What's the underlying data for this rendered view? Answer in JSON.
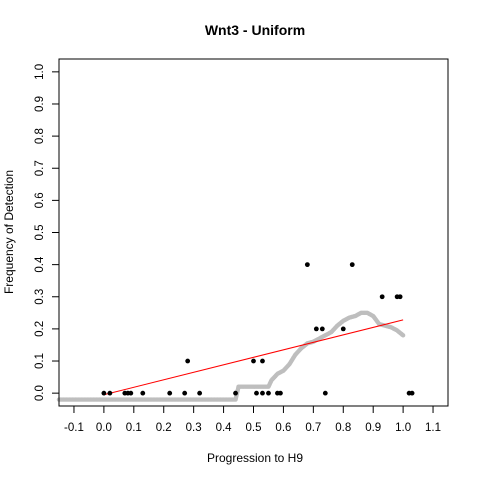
{
  "chart_data": {
    "type": "scatter",
    "title": "Wnt3 - Uniform",
    "xlabel": "Progression to H9",
    "ylabel": "Frequency of Detection",
    "xlim": [
      -0.15,
      1.15
    ],
    "ylim": [
      -0.04,
      1.04
    ],
    "xticks": [
      "-0.1",
      "0.0",
      "0.1",
      "0.2",
      "0.3",
      "0.4",
      "0.5",
      "0.6",
      "0.7",
      "0.8",
      "0.9",
      "1.0",
      "1.1"
    ],
    "yticks": [
      "0.0",
      "0.1",
      "0.2",
      "0.3",
      "0.4",
      "0.5",
      "0.6",
      "0.7",
      "0.8",
      "0.9",
      "1.0"
    ],
    "grid": false,
    "legend": "none",
    "series": [
      {
        "kind": "points",
        "color": "#000000",
        "x": [
          0.0,
          0.02,
          0.07,
          0.08,
          0.09,
          0.13,
          0.22,
          0.27,
          0.28,
          0.32,
          0.44,
          0.5,
          0.51,
          0.53,
          0.53,
          0.55,
          0.58,
          0.59,
          0.68,
          0.71,
          0.73,
          0.74,
          0.8,
          0.83,
          0.93,
          0.98,
          0.99,
          1.02,
          1.03
        ],
        "y": [
          0.0,
          0.0,
          0.0,
          0.0,
          0.0,
          0.0,
          0.0,
          0.0,
          0.1,
          0.0,
          0.0,
          0.1,
          0.0,
          0.1,
          0.0,
          0.0,
          0.0,
          0.0,
          0.4,
          0.2,
          0.2,
          0.0,
          0.2,
          0.4,
          0.3,
          0.3,
          0.3,
          0.0,
          0.0
        ]
      },
      {
        "kind": "smooth",
        "color": "#bebebe",
        "x": [
          -0.15,
          0.0,
          0.1,
          0.2,
          0.3,
          0.4,
          0.44,
          0.45,
          0.5,
          0.53,
          0.55,
          0.56,
          0.58,
          0.6,
          0.62,
          0.64,
          0.66,
          0.68,
          0.7,
          0.72,
          0.74,
          0.76,
          0.78,
          0.8,
          0.82,
          0.84,
          0.86,
          0.88,
          0.9,
          0.92,
          0.94,
          0.96,
          0.98,
          1.0
        ],
        "y": [
          -0.02,
          -0.02,
          -0.02,
          -0.02,
          -0.02,
          -0.02,
          -0.02,
          0.02,
          0.02,
          0.02,
          0.02,
          0.04,
          0.06,
          0.07,
          0.09,
          0.12,
          0.14,
          0.155,
          0.16,
          0.17,
          0.18,
          0.19,
          0.21,
          0.225,
          0.235,
          0.24,
          0.25,
          0.25,
          0.24,
          0.215,
          0.21,
          0.205,
          0.195,
          0.18
        ]
      },
      {
        "kind": "line",
        "color": "#ff0000",
        "x": [
          0.0,
          1.0
        ],
        "y": [
          -0.005,
          0.228
        ]
      }
    ]
  }
}
